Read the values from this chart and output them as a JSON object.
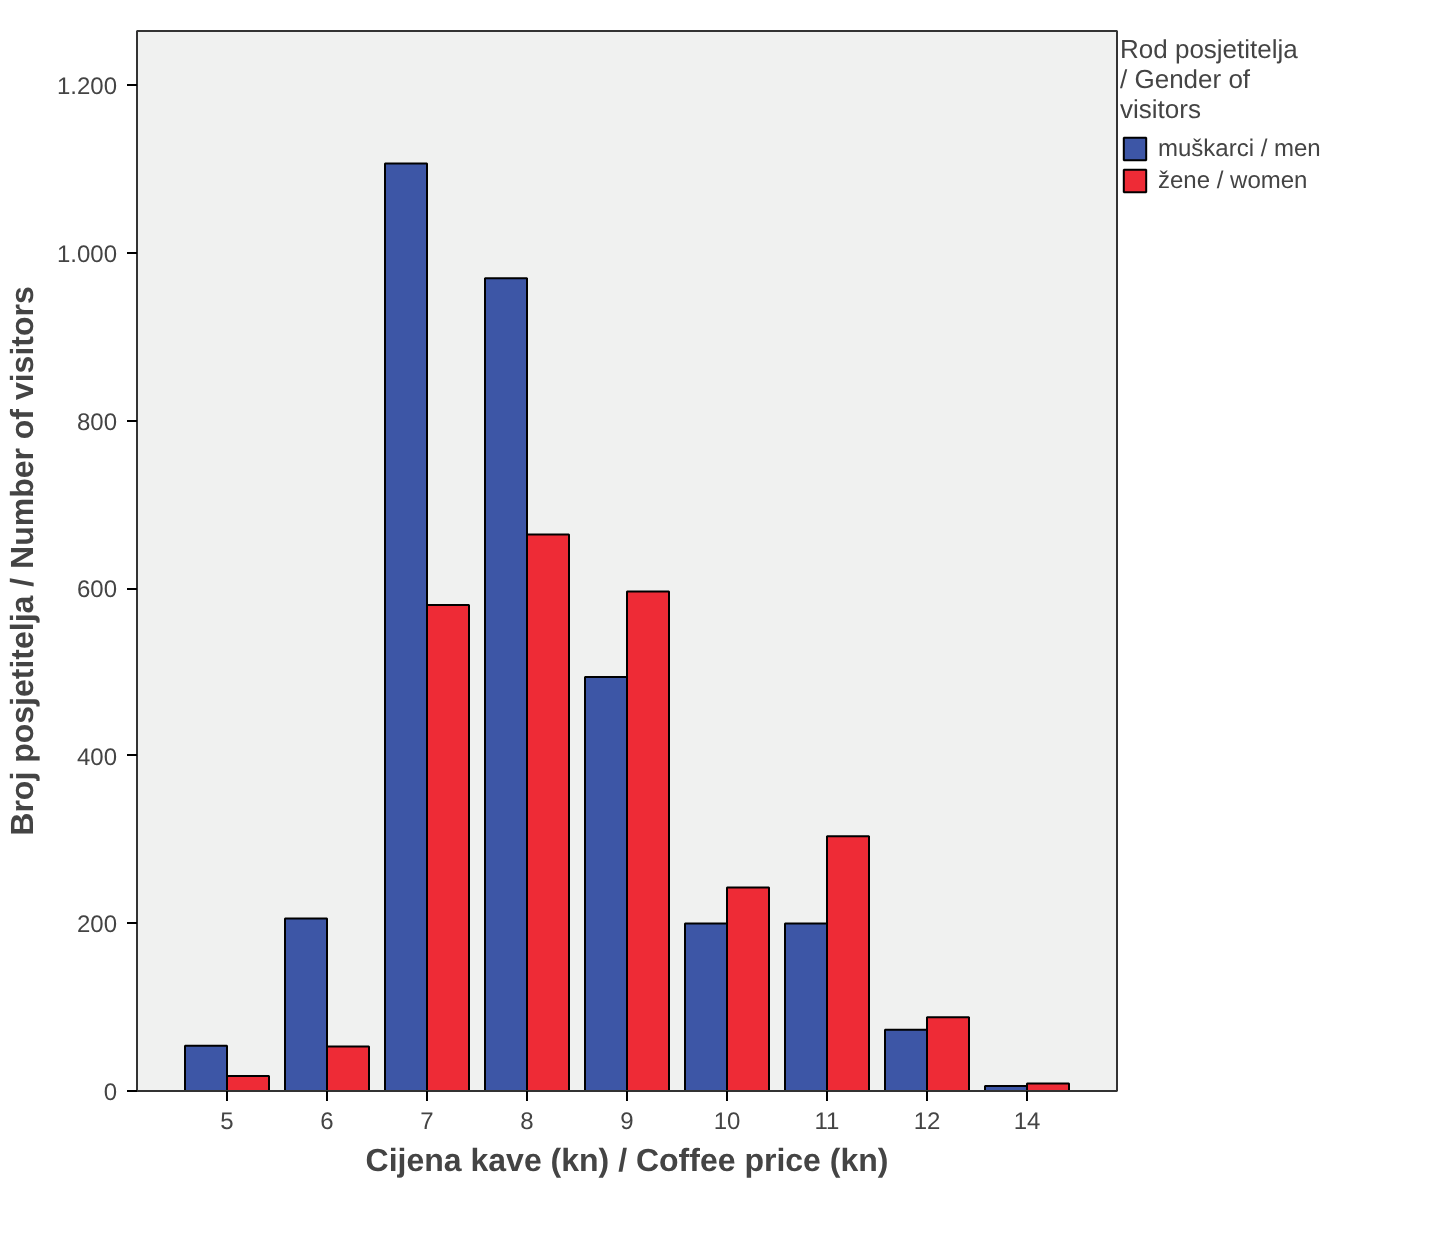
{
  "chart_data": {
    "type": "bar",
    "xlabel": "Cijena kave (kn) / Coffee price (kn)",
    "ylabel": "Broj posjetitelja / Number of visitors",
    "legend_title": "Rod posjetitelja / Gender of visitors",
    "categories": [
      "5",
      "6",
      "7",
      "8",
      "9",
      "10",
      "11",
      "12",
      "14"
    ],
    "series": [
      {
        "name": "muškarci / men",
        "color": "#3d56a6",
        "values": [
          54,
          206,
          1107,
          970,
          494,
          200,
          200,
          73,
          6
        ]
      },
      {
        "name": "žene / women",
        "color": "#ee2b36",
        "values": [
          18,
          53,
          580,
          664,
          596,
          243,
          304,
          88,
          9
        ]
      }
    ],
    "ylim": [
      0,
      1265
    ],
    "yticks": [
      0,
      200,
      400,
      600,
      800,
      {
        "value": 1000,
        "label": "1.000"
      },
      {
        "value": 1200,
        "label": "1.200"
      }
    ],
    "grid": false,
    "legend": "top right"
  }
}
